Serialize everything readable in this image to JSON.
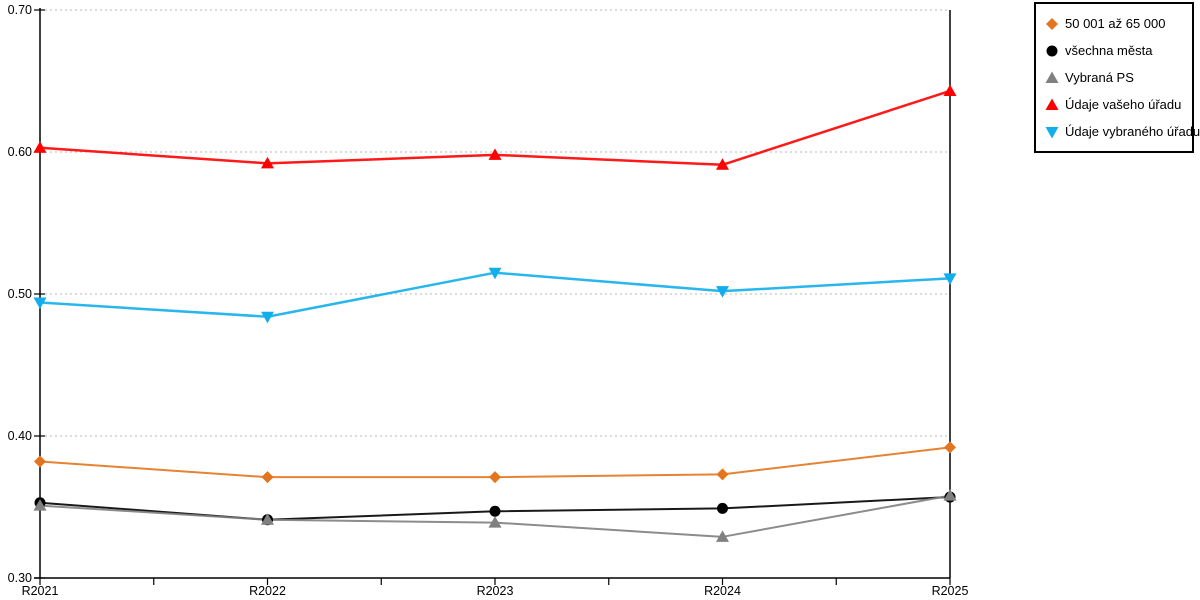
{
  "chart_data": {
    "type": "line",
    "categories": [
      "R2021",
      "R2022",
      "R2023",
      "R2024",
      "R2025"
    ],
    "series": [
      {
        "name": "50 001 až 65 000",
        "marker": "diamond",
        "color": "#E2751D",
        "line_width": 2,
        "values": [
          0.382,
          0.371,
          0.371,
          0.373,
          0.392
        ]
      },
      {
        "name": "všechna města",
        "marker": "circle",
        "color": "#000000",
        "line_width": 2,
        "values": [
          0.353,
          0.341,
          0.347,
          0.349,
          0.357
        ]
      },
      {
        "name": "Vybraná PS",
        "marker": "triangle-up",
        "color": "#808080",
        "line_width": 2,
        "values": [
          0.351,
          0.341,
          0.339,
          0.329,
          0.358
        ]
      },
      {
        "name": "Údaje vašeho úřadu",
        "marker": "triangle-up",
        "color": "#FF0000",
        "line_width": 2.5,
        "values": [
          0.603,
          0.592,
          0.598,
          0.591,
          0.643
        ]
      },
      {
        "name": "Údaje vybraného úřadu",
        "marker": "triangle-down",
        "color": "#12AEEB",
        "line_width": 2.5,
        "values": [
          0.494,
          0.484,
          0.515,
          0.502,
          0.511
        ]
      }
    ],
    "title": "",
    "xlabel": "",
    "ylabel": "",
    "ylim": [
      0.3,
      0.7
    ],
    "yticks": [
      0.3,
      0.4,
      0.5,
      0.6,
      0.7
    ],
    "ytick_labels": [
      "0.30",
      "0.40",
      "0.50",
      "0.60",
      "0.70"
    ],
    "grid": "horizontal dotted at major y ticks",
    "legend_position": "outside top-right, vertical, boxed"
  },
  "colors": {
    "background": "#FFFFFF",
    "axis": "#000000",
    "gridline": "#B8B8B8",
    "tick_label": "#000000",
    "legend_border": "#000000"
  }
}
